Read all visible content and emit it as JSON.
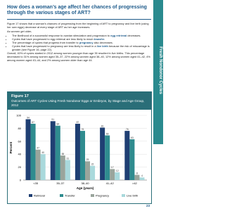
{
  "header": {
    "title": "How does a woman’s age affect her chances of progressing through the various stages of ART?",
    "side_tab": "Fresh Nondonor Cycles",
    "page_number": "23"
  },
  "body": {
    "intro": "Figure 17 shows that a woman’s chances of progressing from the beginning of ART to pregnancy and live birth (using her own eggs) decrease at every stage of ART as her age increases.",
    "lead": "As women get older,",
    "bullets": [
      [
        "The likelihood of a successful response to ovarian stimulation and progression to ",
        "egg retrieval",
        " decreases."
      ],
      [
        "Cycles that have progressed to egg retrieval are less likely to reach ",
        "transfer",
        "."
      ],
      [
        "The percentage of cycles that progress from transfer to ",
        "pregnancy",
        " also decreases."
      ],
      [
        "Cycles that have progressed to pregnancy are less likely to result in a ",
        "live birth",
        " because the risk of miscarriage is greater (see Figure 16, page 22)."
      ]
    ],
    "closing": "Overall, 40% of cycles started in 2012 among women younger than age 35 resulted in live births. This percentage decreased to 31% among women aged 35–37, 22% among women aged 38–40, 12% among women aged 41–42, 4% among women aged 43–44, and 2% among women older than age 44."
  },
  "chart_data": {
    "type": "bar",
    "figure_label": "Figure 17",
    "title": "Outcomes of ART Cycles Using Fresh Nondonor Eggs or Embryos, by Stage and Age Group, 2012",
    "y_label": "Percent",
    "x_label": "Age (years)",
    "categories": [
      "<35",
      "35–37",
      "38–40",
      "41–42",
      ">42"
    ],
    "series": [
      {
        "name": "Retrieval",
        "color": "#1f3f73",
        "values": [
          94,
          91,
          87,
          81,
          76
        ]
      },
      {
        "name": "Transfer",
        "color": "#2f8c8f",
        "values": [
          87,
          84,
          76,
          69,
          63
        ]
      },
      {
        "name": "Pregnancy",
        "color": "#9aa59c",
        "values": [
          47,
          38,
          29,
          17,
          8
        ]
      },
      {
        "name": "Live birth",
        "color": "#a9d9dc",
        "values": [
          40,
          31,
          22,
          12,
          4
        ]
      }
    ],
    "ylim": [
      0,
      100
    ],
    "yticks": [
      0,
      20,
      40,
      60,
      80,
      100
    ],
    "grid": true
  }
}
